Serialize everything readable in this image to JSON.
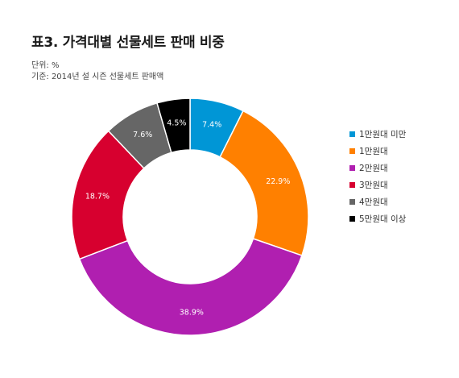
{
  "header": {
    "title": "표3. 가격대별 선물세트 판매 비중",
    "unit": "단위: %",
    "basis": "기준: 2014년 설 시즌 선물세트 판매액"
  },
  "chart_data": {
    "type": "pie",
    "donut": true,
    "title": "표3. 가격대별 선물세트 판매 비중",
    "legend_position": "right",
    "categories": [
      "1만원대 미만",
      "1만원대",
      "2만원대",
      "3만원대",
      "4만원대",
      "5만원대 이상"
    ],
    "values": [
      7.4,
      22.9,
      38.9,
      18.7,
      7.6,
      4.5
    ],
    "labels": [
      "7.4%",
      "22.9%",
      "38.9%",
      "18.7%",
      "7.6%",
      "4.5%"
    ],
    "colors": [
      "#0096d6",
      "#ff8000",
      "#b01fb0",
      "#d7002f",
      "#666666",
      "#000000"
    ],
    "label_colors": [
      "#ffffff",
      "#ffffff",
      "#ffffff",
      "#ffffff",
      "#ffffff",
      "#ffffff"
    ]
  }
}
